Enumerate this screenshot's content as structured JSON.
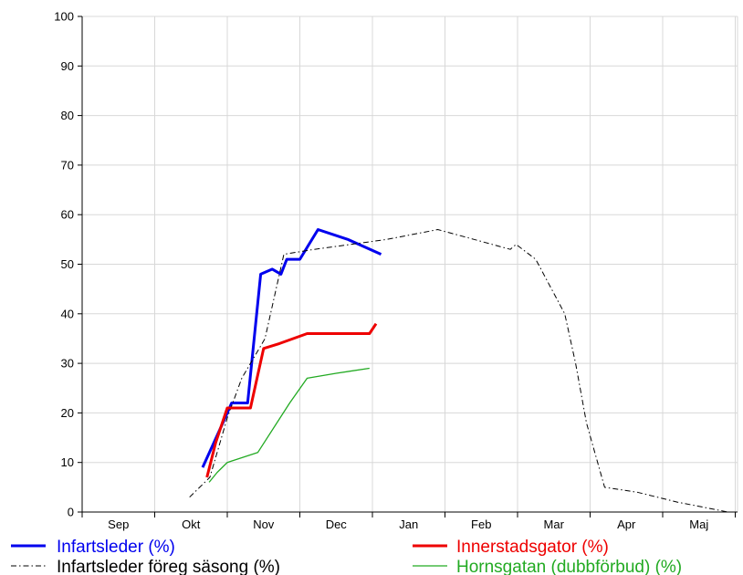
{
  "chart_data": {
    "type": "line",
    "categories": [
      "Sep",
      "Okt",
      "Nov",
      "Dec",
      "Jan",
      "Feb",
      "Mar",
      "Apr",
      "Maj"
    ],
    "x_unit": "month index (Sep = 0)",
    "ylim": [
      0,
      100
    ],
    "yticks": [
      0,
      10,
      20,
      30,
      40,
      50,
      60,
      70,
      80,
      90,
      100
    ],
    "grid": true,
    "legend_position": "bottom",
    "series": [
      {
        "name": "Infartsleder (%)",
        "color": "#0000ee",
        "style": "solid-thick",
        "x": [
          1.66,
          1.94,
          2.06,
          2.28,
          2.46,
          2.62,
          2.74,
          2.82,
          3.0,
          3.25,
          3.66,
          4.12
        ],
        "y": [
          9,
          18,
          22,
          22,
          48,
          49,
          48,
          51,
          51,
          57,
          55,
          52
        ]
      },
      {
        "name": "Infartsleder föreg säsong (%)",
        "color": "#000000",
        "style": "dash-dot",
        "x": [
          1.48,
          1.76,
          2.0,
          2.2,
          2.52,
          2.78,
          3.2,
          3.7,
          4.2,
          4.9,
          5.15,
          5.4,
          5.9,
          5.98,
          6.25,
          6.65,
          6.8,
          6.95,
          7.2,
          7.65,
          8.2,
          8.9
        ],
        "y": [
          3,
          7,
          19,
          27,
          35,
          52,
          53,
          54,
          55,
          57,
          56,
          55,
          53,
          54,
          51,
          40,
          30,
          18,
          5,
          4,
          2,
          0
        ]
      },
      {
        "name": "Innerstadsgator (%)",
        "color": "#ee0000",
        "style": "solid-thick",
        "x": [
          1.72,
          1.84,
          2.0,
          2.18,
          2.32,
          2.5,
          2.72,
          3.1,
          3.5,
          3.96,
          4.05
        ],
        "y": [
          7,
          14,
          21,
          21,
          21,
          33,
          34,
          36,
          36,
          36,
          38
        ]
      },
      {
        "name": "Hornsgatan (dubbförbud) (%)",
        "color": "#22aa22",
        "style": "solid-thin",
        "x": [
          1.75,
          1.86,
          2.0,
          2.42,
          2.86,
          3.1,
          3.5,
          3.96
        ],
        "y": [
          6,
          8,
          10,
          12,
          22,
          27,
          28,
          29
        ]
      }
    ]
  }
}
